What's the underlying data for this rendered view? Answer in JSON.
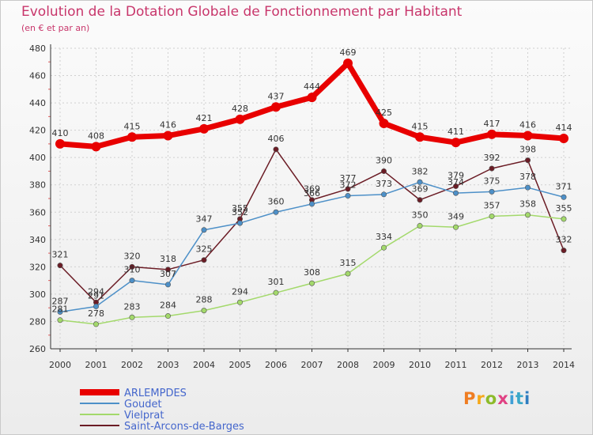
{
  "title": "Evolution de la Dotation Globale de Fonctionnement par Habitant",
  "subtitle": "(en € et par an)",
  "logo": {
    "text": "Proxiti",
    "letter_colors": [
      "#ef7d22",
      "#f6a91a",
      "#8dbb2a",
      "#e04183",
      "#3f9fd6",
      "#3aa7c8",
      "#2f7dc0"
    ]
  },
  "colors": {
    "ARLEMPDES": "#e80000",
    "Goudet": "#4d90c8",
    "Vielprat": "#a3d96b",
    "Saint-Arcons-de-Barges": "#6b1c25",
    "grid": "#d0d0d0",
    "axis": "#333333"
  },
  "chart_data": {
    "type": "line",
    "title": "Evolution de la Dotation Globale de Fonctionnement par Habitant",
    "subtitle": "(en € et par an)",
    "xlabel": "",
    "ylabel": "",
    "x": [
      "2000",
      "2001",
      "2002",
      "2003",
      "2004",
      "2005",
      "2006",
      "2007",
      "2008",
      "2009",
      "2010",
      "2011",
      "2012",
      "2013",
      "2014"
    ],
    "ylim": [
      260,
      480
    ],
    "yticks": [
      260,
      280,
      300,
      320,
      340,
      360,
      380,
      400,
      420,
      440,
      460,
      480
    ],
    "grid": true,
    "legend_position": "bottom-left",
    "series": [
      {
        "name": "ARLEMPDES",
        "values": [
          410,
          408,
          415,
          416,
          421,
          428,
          437,
          444,
          469,
          425,
          415,
          411,
          417,
          416,
          414
        ]
      },
      {
        "name": "Goudet",
        "values": [
          287,
          291,
          310,
          307,
          347,
          352,
          360,
          366,
          372,
          373,
          382,
          374,
          375,
          378,
          371
        ]
      },
      {
        "name": "Vielprat",
        "values": [
          281,
          278,
          283,
          284,
          288,
          294,
          301,
          308,
          315,
          334,
          350,
          349,
          357,
          358,
          355
        ]
      },
      {
        "name": "Saint-Arcons-de-Barges",
        "values": [
          321,
          294,
          320,
          318,
          325,
          355,
          406,
          369,
          377,
          390,
          369,
          379,
          392,
          398,
          332
        ]
      }
    ]
  }
}
